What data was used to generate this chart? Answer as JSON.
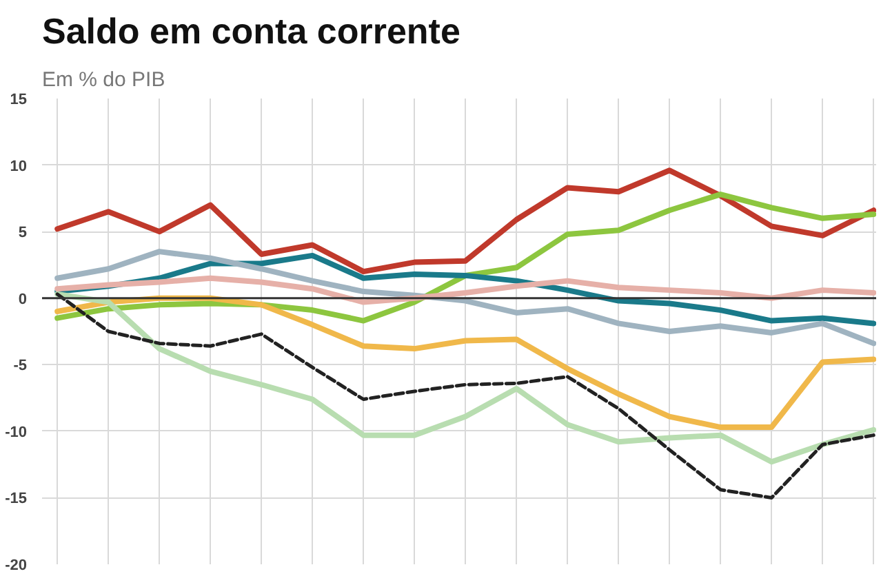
{
  "chart_data": {
    "type": "line",
    "title": "Saldo em conta corrente",
    "subtitle": "Em % do PIB",
    "categories": [
      null,
      null,
      null,
      null,
      null,
      null,
      null,
      null,
      null,
      null,
      null,
      null,
      null,
      null,
      null,
      null,
      null
    ],
    "series": [
      {
        "color": "#c0392b",
        "values": [
          5.2,
          6.5,
          5.0,
          7.0,
          3.3,
          4.0,
          2.0,
          2.7,
          2.8,
          5.9,
          8.3,
          8.0,
          9.6,
          7.7,
          5.4,
          4.7,
          6.6
        ]
      },
      {
        "color": "#8dc63f",
        "values": [
          -1.5,
          -0.8,
          -0.5,
          -0.4,
          -0.5,
          -0.9,
          -1.7,
          -0.3,
          1.7,
          2.3,
          4.8,
          5.1,
          6.6,
          7.8,
          6.8,
          6.0,
          6.3
        ]
      },
      {
        "color": "#1a7a8a",
        "values": [
          0.5,
          0.9,
          1.5,
          2.6,
          2.6,
          3.2,
          1.5,
          1.8,
          1.7,
          1.3,
          0.6,
          -0.2,
          -0.4,
          -0.9,
          -1.7,
          -1.5,
          -1.9
        ]
      },
      {
        "color": "#9fb3c0",
        "values": [
          1.5,
          2.2,
          3.5,
          3.0,
          2.2,
          1.3,
          0.5,
          0.2,
          -0.2,
          -1.1,
          -0.8,
          -1.9,
          -2.5,
          -2.1,
          -2.6,
          -1.9,
          -3.4
        ]
      },
      {
        "color": "#e6b0a8",
        "values": [
          0.7,
          1.0,
          1.2,
          1.5,
          1.2,
          0.7,
          -0.3,
          0.0,
          0.4,
          0.9,
          1.3,
          0.8,
          0.6,
          0.4,
          0.0,
          0.6,
          0.4
        ]
      },
      {
        "color": "#f0b84a",
        "values": [
          -1.0,
          -0.3,
          0.0,
          0.0,
          -0.5,
          -2.0,
          -3.6,
          -3.8,
          -3.2,
          -3.1,
          -5.3,
          -7.2,
          -8.9,
          -9.7,
          -9.7,
          -4.8,
          -4.6
        ]
      },
      {
        "color": "#b8ddb0",
        "values": [
          0.3,
          -0.3,
          -3.8,
          -5.5,
          -6.5,
          -7.6,
          -10.3,
          -10.3,
          -8.9,
          -6.8,
          -9.5,
          -10.8,
          -10.5,
          -10.3,
          -12.3,
          -11.0,
          -9.9
        ]
      },
      {
        "color": "#222222",
        "line_style": "dashed",
        "values": [
          0.3,
          -2.5,
          -3.4,
          -3.6,
          -2.7,
          -5.2,
          -7.6,
          -7.0,
          -6.5,
          -6.4,
          -5.9,
          -8.3,
          -11.4,
          -14.4,
          -15.0,
          -11.0,
          -10.3
        ]
      }
    ],
    "ylim": [
      -20,
      15
    ],
    "yticks": [
      15,
      10,
      5,
      0,
      -5,
      -10,
      -15,
      -20
    ],
    "ref_lines": [
      {
        "axis": "y",
        "value": 0,
        "color": "#333333"
      }
    ],
    "grid": true,
    "marker": "none",
    "line_style": "solid",
    "tick_labels": "y"
  }
}
